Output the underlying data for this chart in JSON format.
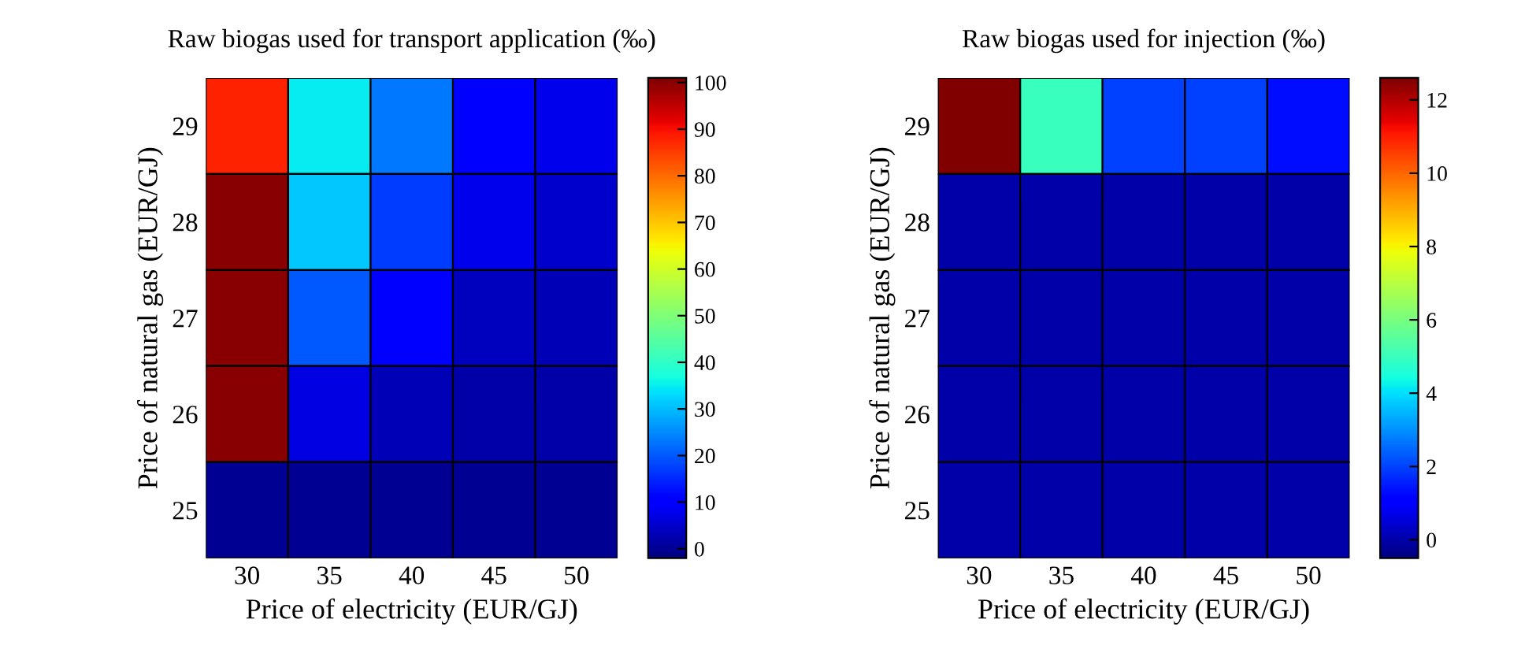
{
  "chart_data": [
    {
      "type": "heatmap",
      "title": "Raw biogas used for transport application (‰)",
      "xlabel": "Price of electricity (EUR/GJ)",
      "ylabel": "Price of natural gas (EUR/GJ)",
      "categories": [
        "30",
        "35",
        "40",
        "45",
        "50"
      ],
      "y_categories": [
        "29",
        "28",
        "27",
        "26",
        "25"
      ],
      "cells": [
        [
          88,
          35,
          23,
          10,
          8
        ],
        [
          100,
          31,
          17,
          8,
          5
        ],
        [
          100,
          20,
          10,
          4,
          3
        ],
        [
          100,
          7,
          3,
          2,
          2
        ],
        [
          0,
          0,
          0,
          0,
          0
        ]
      ],
      "clim": [
        -2,
        101
      ],
      "cticks": [
        0,
        10,
        20,
        30,
        40,
        50,
        60,
        70,
        80,
        90,
        100
      ]
    },
    {
      "type": "heatmap",
      "title": "Raw biogas used for injection (‰)",
      "xlabel": "Price of electricity (EUR/GJ)",
      "ylabel": "Price of natural gas (EUR/GJ)",
      "categories": [
        "30",
        "35",
        "40",
        "45",
        "50"
      ],
      "y_categories": [
        "29",
        "28",
        "27",
        "26",
        "25"
      ],
      "cells": [
        [
          12.6,
          5,
          2,
          2,
          1.3
        ],
        [
          0,
          0,
          0,
          0,
          0
        ],
        [
          0,
          0,
          0,
          0,
          0
        ],
        [
          0,
          0,
          0,
          0,
          0
        ],
        [
          0,
          0,
          0,
          0,
          0
        ]
      ],
      "clim": [
        -0.5,
        12.6
      ],
      "cticks": [
        0,
        2,
        4,
        6,
        8,
        10,
        12
      ]
    }
  ]
}
